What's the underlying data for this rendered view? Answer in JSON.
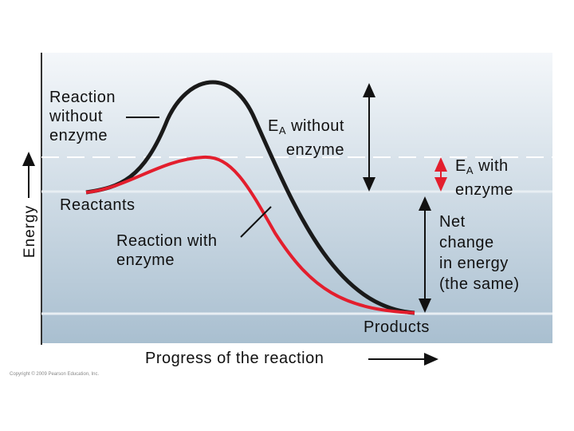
{
  "diagram": {
    "axis_y_label": "Energy",
    "axis_x_label": "Progress of the reaction",
    "reaction_without_enzyme": [
      "Reaction",
      "without",
      "enzyme"
    ],
    "ea_without": {
      "symbol": "E",
      "subscript": "A",
      "lines": [
        "without",
        "enzyme"
      ]
    },
    "ea_with": {
      "symbol": "E",
      "subscript": "A",
      "lines": [
        "with",
        "enzyme"
      ]
    },
    "reactants": "Reactants",
    "reaction_with_enzyme": [
      "Reaction with",
      "enzyme"
    ],
    "net_change": [
      "Net",
      "change",
      "in energy",
      "(the same)"
    ],
    "products": "Products",
    "copyright": "Copyright © 2009 Pearson Education, Inc."
  }
}
